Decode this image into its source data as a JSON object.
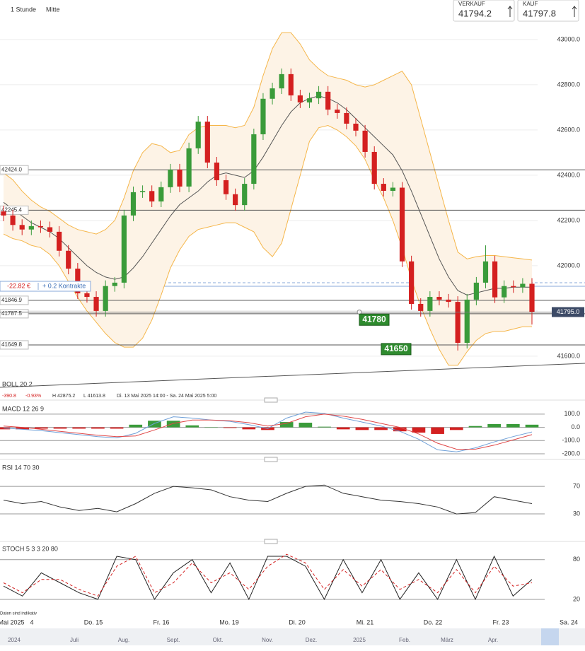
{
  "header": {
    "interval": "1 Stunde",
    "price_mode": "Mitte",
    "sell": {
      "label": "VERKAUF",
      "price": "41794.2"
    },
    "buy": {
      "label": "KAUF",
      "price": "41797.8"
    }
  },
  "chart_data": [
    {
      "type": "candlestick",
      "title": "BOLL 20 2",
      "stats": [
        "-390.8",
        "-0.93%",
        "H 42875.2",
        "L 41613.8",
        "Di. 13 Mai 2025 14:00 - Sa. 24 Mai 2025 5:00"
      ],
      "up_color": "#3a9b3a",
      "down_color": "#d42020",
      "open": [
        42240,
        42222,
        42180,
        42160,
        42175,
        42170,
        42150,
        42066,
        41987,
        41878,
        41862,
        41800,
        41910,
        41925,
        42222,
        42325,
        42330,
        42284,
        42347,
        42425,
        42350,
        42519,
        42637,
        42456,
        42378,
        42316,
        42268,
        42362,
        42581,
        42738,
        42784,
        42847,
        42753,
        42722,
        42740,
        42769,
        42690,
        42675,
        42628,
        42597,
        42503,
        42362,
        42331,
        42345,
        42019,
        41831,
        41800,
        41862,
        41850,
        41840,
        41659,
        41850,
        41925,
        42019,
        41860,
        41910,
        41905,
        41920
      ],
      "high": [
        42265,
        42247,
        42205,
        42200,
        42200,
        42195,
        42175,
        42091,
        42012,
        41903,
        41887,
        41935,
        41950,
        42247,
        42350,
        42355,
        42355,
        42372,
        42450,
        42450,
        42544,
        42662,
        42662,
        42481,
        42403,
        42341,
        42387,
        42606,
        42763,
        42809,
        42872,
        42872,
        42778,
        42765,
        42794,
        42794,
        42715,
        42700,
        42653,
        42622,
        42528,
        42387,
        42370,
        42370,
        42044,
        41856,
        41887,
        41887,
        41875,
        41865,
        41875,
        41950,
        42090,
        42044,
        41935,
        41935,
        41945,
        41945
      ],
      "low": [
        42197,
        42155,
        42135,
        42135,
        42145,
        42125,
        42041,
        41962,
        41853,
        41837,
        41775,
        41775,
        41885,
        41900,
        42197,
        42300,
        42259,
        42259,
        42322,
        42325,
        42325,
        42494,
        42431,
        42353,
        42291,
        42243,
        42243,
        42337,
        42556,
        42713,
        42759,
        42728,
        42697,
        42697,
        42715,
        42665,
        42650,
        42603,
        42572,
        42478,
        42337,
        42306,
        42306,
        41994,
        41806,
        41775,
        41775,
        41825,
        41815,
        41625,
        41634,
        41825,
        41900,
        41835,
        41835,
        41880,
        41880,
        41740
      ],
      "close": [
        42222,
        42180,
        42160,
        42175,
        42170,
        42150,
        42066,
        41987,
        41878,
        41862,
        41800,
        41910,
        41925,
        42222,
        42325,
        42330,
        42284,
        42347,
        42425,
        42350,
        42519,
        42637,
        42456,
        42378,
        42316,
        42268,
        42362,
        42581,
        42738,
        42784,
        42847,
        42753,
        42722,
        42740,
        42769,
        42690,
        42675,
        42628,
        42597,
        42503,
        42362,
        42331,
        42345,
        42019,
        41831,
        41800,
        41862,
        41850,
        41840,
        41659,
        41850,
        41925,
        42019,
        41860,
        41910,
        41905,
        41920,
        41795
      ],
      "bands": {
        "color": "#f5b64a",
        "fill": "#fdf3e6",
        "middle_color": "#555555",
        "upper": [
          42410,
          42380,
          42330,
          42290,
          42260,
          42240,
          42210,
          42180,
          42160,
          42150,
          42140,
          42160,
          42200,
          42300,
          42420,
          42500,
          42540,
          42530,
          42500,
          42510,
          42580,
          42610,
          42620,
          42620,
          42620,
          42610,
          42620,
          42700,
          42840,
          42960,
          43030,
          43030,
          42980,
          42910,
          42870,
          42840,
          42830,
          42820,
          42800,
          42790,
          42800,
          42820,
          42840,
          42860,
          42800,
          42650,
          42500,
          42350,
          42200,
          42060,
          42030,
          42040,
          42045,
          42045,
          42040,
          42035,
          42030,
          42025
        ],
        "middle": [
          42280,
          42250,
          42220,
          42190,
          42170,
          42150,
          42120,
          42080,
          42040,
          42000,
          41970,
          41950,
          41940,
          41950,
          41990,
          42040,
          42100,
          42160,
          42220,
          42270,
          42300,
          42330,
          42370,
          42400,
          42410,
          42400,
          42390,
          42420,
          42480,
          42550,
          42620,
          42680,
          42720,
          42740,
          42750,
          42740,
          42720,
          42690,
          42650,
          42610,
          42570,
          42530,
          42490,
          42420,
          42330,
          42230,
          42130,
          42030,
          41950,
          41890,
          41870,
          41880,
          41890,
          41900,
          41900,
          41905,
          41905,
          41905
        ],
        "lower": [
          42140,
          42120,
          42110,
          42090,
          42080,
          42050,
          42000,
          41930,
          41860,
          41800,
          41750,
          41700,
          41660,
          41640,
          41640,
          41680,
          41760,
          41870,
          41990,
          42070,
          42130,
          42160,
          42170,
          42180,
          42190,
          42190,
          42170,
          42150,
          42080,
          42040,
          42100,
          42250,
          42400,
          42550,
          42610,
          42620,
          42600,
          42570,
          42530,
          42470,
          42380,
          42300,
          42200,
          42080,
          41940,
          41820,
          41720,
          41630,
          41560,
          41560,
          41620,
          41670,
          41700,
          41710,
          41710,
          41720,
          41730,
          41730
        ]
      },
      "ylim": [
        41534,
        43106
      ],
      "yticks": [
        {
          "value": 41600,
          "label": "41600.0"
        },
        {
          "value": 41800,
          "label": "41800.0"
        },
        {
          "value": 42000,
          "label": "42000.0"
        },
        {
          "value": 42200,
          "label": "42200.0"
        },
        {
          "value": 42400,
          "label": "42400.0"
        },
        {
          "value": 42600,
          "label": "42600.0"
        },
        {
          "value": 42800,
          "label": "42800.0"
        },
        {
          "value": 43000,
          "label": "43000.0"
        }
      ],
      "grid": true,
      "levels": [
        {
          "value": 42424,
          "label": "42424.0"
        },
        42245.4,
        41846.9,
        41787.5,
        41649.8
      ],
      "last_price": {
        "value": 41795,
        "label": "41795.0"
      },
      "markers": [
        41780,
        41650
      ],
      "position": {
        "pnl": "-22.82 €",
        "size": "+ 0.2 Kontrakte"
      }
    },
    {
      "type": "macd",
      "title": "MACD 12 26 9",
      "macd": {
        "color": "#6fa0d8",
        "values": [
          -5,
          -15,
          -25,
          -40,
          -55,
          -70,
          -80,
          -45,
          30,
          80,
          70,
          55,
          45,
          20,
          -10,
          70,
          115,
          105,
          70,
          40,
          10,
          -30,
          -90,
          -170,
          -185,
          -155,
          -110,
          -70,
          -35
        ]
      },
      "signal": {
        "color": "#e04848",
        "values": [
          10,
          0,
          -15,
          -30,
          -45,
          -60,
          -70,
          -65,
          -20,
          30,
          55,
          55,
          50,
          35,
          10,
          30,
          80,
          100,
          85,
          60,
          30,
          0,
          -50,
          -120,
          -165,
          -165,
          -135,
          -95,
          -55
        ]
      },
      "histogram": {
        "up_color": "#3a9b3a",
        "down_color": "#d42020",
        "values": [
          -15,
          -15,
          -10,
          -10,
          -10,
          -10,
          -10,
          20,
          50,
          50,
          15,
          0,
          -5,
          -15,
          -20,
          40,
          35,
          5,
          -15,
          -20,
          -20,
          -30,
          -40,
          -50,
          -20,
          10,
          25,
          25,
          20
        ]
      },
      "ylim": [
        -232,
        174
      ],
      "yticks": [
        {
          "value": 100,
          "label": "100.0"
        },
        {
          "value": 0,
          "label": "0.0"
        },
        {
          "value": -100,
          "label": "-100.0"
        },
        {
          "value": -200,
          "label": "-200.0"
        }
      ]
    },
    {
      "type": "line",
      "title": "RSI 14 70 30",
      "series": [
        {
          "color": "#333333",
          "values": [
            50,
            45,
            48,
            40,
            35,
            38,
            33,
            45,
            60,
            70,
            68,
            65,
            55,
            50,
            48,
            60,
            70,
            72,
            60,
            55,
            50,
            48,
            45,
            40,
            30,
            32,
            55,
            50,
            45
          ]
        }
      ],
      "ylim": [
        -9,
        102
      ],
      "yticks": [
        70,
        30
      ]
    },
    {
      "type": "line",
      "title": "STOCH 5 3 3 20 80",
      "series": [
        {
          "color": "#222222",
          "values": [
            40,
            25,
            60,
            45,
            30,
            20,
            85,
            80,
            20,
            60,
            80,
            30,
            75,
            20,
            85,
            85,
            70,
            20,
            80,
            30,
            80,
            20,
            60,
            20,
            80,
            20,
            85,
            25,
            50
          ]
        },
        {
          "color": "#d42020",
          "dashed": true,
          "values": [
            45,
            30,
            50,
            50,
            35,
            25,
            70,
            85,
            30,
            45,
            75,
            45,
            60,
            35,
            70,
            88,
            75,
            35,
            65,
            40,
            65,
            35,
            50,
            30,
            65,
            30,
            70,
            40,
            45
          ]
        }
      ],
      "ylim": [
        5,
        101
      ],
      "yticks": [
        80,
        20
      ]
    }
  ],
  "footer": {
    "note": "Daten sind indikativ",
    "time_labels": [
      "Mai 2025",
      "4",
      "Do. 15",
      "Fr. 16",
      "Mo. 19",
      "Di. 20",
      "Mi. 21",
      "Do. 22",
      "Fr. 23",
      "Sa. 24"
    ],
    "navigator_labels": [
      "2024",
      "Juli",
      "Aug.",
      "Sept.",
      "Okt.",
      "Nov.",
      "Dez.",
      "2025",
      "Feb.",
      "März",
      "Apr."
    ]
  }
}
